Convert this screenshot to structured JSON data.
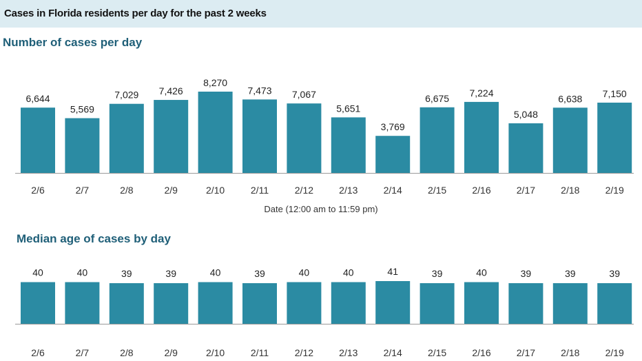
{
  "header": {
    "title": "Cases in Florida residents per day for the past 2 weeks"
  },
  "colors": {
    "bar": "#2b8ba3",
    "header_bg": "#dcecf2",
    "section_title": "#1f5f78",
    "baseline": "#999999"
  },
  "chart_data": [
    {
      "type": "bar",
      "title": "Number of cases per day",
      "xlabel": "Date (12:00 am to 11:59 pm)",
      "ylabel": "",
      "categories": [
        "2/6",
        "2/7",
        "2/8",
        "2/9",
        "2/10",
        "2/11",
        "2/12",
        "2/13",
        "2/14",
        "2/15",
        "2/16",
        "2/17",
        "2/18",
        "2/19"
      ],
      "values": [
        6644,
        5569,
        7029,
        7426,
        8270,
        7473,
        7067,
        5651,
        3769,
        6675,
        7224,
        5048,
        6638,
        7150
      ],
      "value_labels": [
        "6,644",
        "5,569",
        "7,029",
        "7,426",
        "8,270",
        "7,473",
        "7,067",
        "5,651",
        "3,769",
        "6,675",
        "7,224",
        "5,048",
        "6,638",
        "7,150"
      ],
      "ylim": [
        0,
        8270
      ],
      "grid": false
    },
    {
      "type": "bar",
      "title": "Median age of cases by day",
      "xlabel": "",
      "ylabel": "",
      "categories": [
        "2/6",
        "2/7",
        "2/8",
        "2/9",
        "2/10",
        "2/11",
        "2/12",
        "2/13",
        "2/14",
        "2/15",
        "2/16",
        "2/17",
        "2/18",
        "2/19"
      ],
      "values": [
        40,
        40,
        39,
        39,
        40,
        39,
        40,
        40,
        41,
        39,
        40,
        39,
        39,
        39
      ],
      "value_labels": [
        "40",
        "40",
        "39",
        "39",
        "40",
        "39",
        "40",
        "40",
        "41",
        "39",
        "40",
        "39",
        "39",
        "39"
      ],
      "ylim": [
        0,
        41
      ],
      "grid": false
    }
  ]
}
